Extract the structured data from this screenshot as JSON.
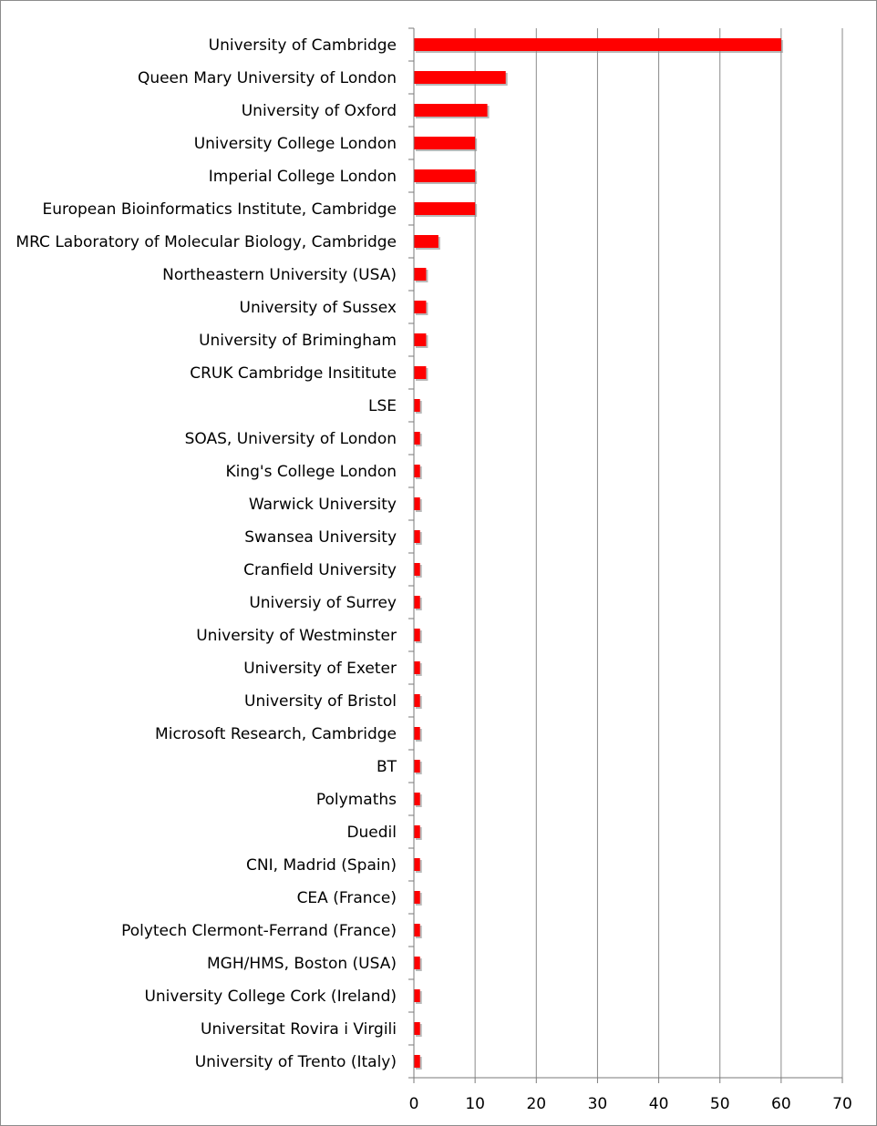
{
  "chart_data": {
    "type": "bar",
    "orientation": "horizontal",
    "categories": [
      "University of Cambridge",
      "Queen Mary University of London",
      "University of Oxford",
      "University College London",
      "Imperial College London",
      "European Bioinformatics Institute, Cambridge",
      "MRC Laboratory of Molecular Biology, Cambridge",
      "Northeastern University (USA)",
      "University of Sussex",
      "University of Brimingham",
      "CRUK Cambridge Insititute",
      "LSE",
      "SOAS, University of London",
      "King's College London",
      "Warwick University",
      "Swansea University",
      "Cranfield University",
      "Universiy of Surrey",
      "University of Westminster",
      "University of Exeter",
      "University of Bristol",
      "Microsoft Research, Cambridge",
      "BT",
      "Polymaths",
      "Duedil",
      "CNI,  Madrid (Spain)",
      "CEA (France)",
      "Polytech Clermont-Ferrand (France)",
      "MGH/HMS, Boston (USA)",
      "University College Cork (Ireland)",
      "Universitat Rovira i Virgili",
      "University of Trento (Italy)"
    ],
    "values": [
      60,
      15,
      12,
      10,
      10,
      10,
      4,
      2,
      2,
      2,
      2,
      1,
      1,
      1,
      1,
      1,
      1,
      1,
      1,
      1,
      1,
      1,
      1,
      1,
      1,
      1,
      1,
      1,
      1,
      1,
      1,
      1
    ],
    "title": "",
    "xlabel": "",
    "ylabel": "",
    "xlim": [
      0,
      70
    ],
    "xticks": [
      "0",
      "10",
      "20",
      "30",
      "40",
      "50",
      "60",
      "70"
    ],
    "grid": true,
    "legend": "none",
    "colors": {
      "bar": "#ff0000",
      "bar_shadow": "#8a8a8a",
      "grid": "#8a8a8a",
      "axis": "#7a7a7a"
    }
  }
}
